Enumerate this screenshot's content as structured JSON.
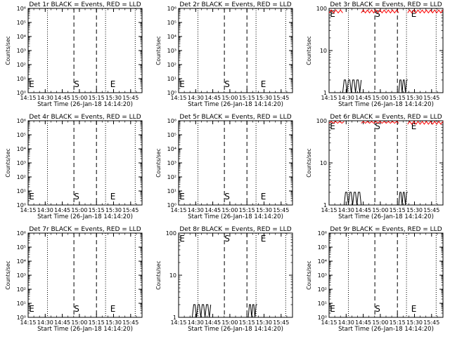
{
  "colors": {
    "events": "#000000",
    "lld": "#ff0000",
    "background": "#ffffff"
  },
  "common": {
    "xlabel": "Start Time (26-Jan-18 14:14:20)",
    "ylabel": "Counts/sec",
    "x_tick_labels": [
      "14:15",
      "14:30",
      "14:45",
      "15:00",
      "15:15",
      "15:30",
      "15:45"
    ],
    "start_marker": "S",
    "end_marker": "E"
  },
  "chart_data": [
    {
      "type": "line",
      "title": "Det 1r BLACK = Events, RED = LLD",
      "y_scale": "log",
      "ylim": [
        1,
        1000000
      ],
      "y_tick_labels": [
        "10⁰",
        "10¹",
        "10²",
        "10³",
        "10⁴",
        "10⁵",
        "10⁶"
      ],
      "x_range_min": [
        14.25,
        15.9167
      ],
      "dotted_lines_min": [
        14.533,
        15.383,
        15.817
      ],
      "dashed_lines_min": [
        14.92,
        15.25
      ],
      "events_segments": [],
      "lld_segments": []
    },
    {
      "type": "line",
      "title": "Det 2r BLACK = Events, RED = LLD",
      "y_scale": "log",
      "ylim": [
        1,
        1000000
      ],
      "y_tick_labels": [
        "10⁰",
        "10¹",
        "10²",
        "10³",
        "10⁴",
        "10⁵",
        "10⁶"
      ],
      "x_range_min": [
        14.25,
        15.9167
      ],
      "dotted_lines_min": [
        14.533,
        15.383,
        15.817
      ],
      "dashed_lines_min": [
        14.92,
        15.25
      ],
      "events_segments": [],
      "lld_segments": []
    },
    {
      "type": "line",
      "title": "Det 3r BLACK = Events, RED = LLD",
      "y_scale": "log",
      "ylim": [
        1,
        100
      ],
      "y_tick_labels": [
        "1",
        "10",
        "100"
      ],
      "x_range_min": [
        14.25,
        15.9167
      ],
      "dotted_lines_min": [
        14.533,
        15.383,
        15.817
      ],
      "dashed_lines_min": [
        14.92,
        15.25
      ],
      "events_segments": [
        [
          14.45,
          14.72,
          2
        ],
        [
          15.27,
          15.4,
          2
        ]
      ],
      "lld_segments": [
        [
          14.25,
          14.45,
          85
        ],
        [
          14.72,
          15.27,
          85
        ],
        [
          15.4,
          15.9167,
          85
        ]
      ]
    },
    {
      "type": "line",
      "title": "Det 4r BLACK = Events, RED = LLD",
      "y_scale": "log",
      "ylim": [
        1,
        1000000
      ],
      "y_tick_labels": [
        "10⁰",
        "10¹",
        "10²",
        "10³",
        "10⁴",
        "10⁵",
        "10⁶"
      ],
      "x_range_min": [
        14.25,
        15.9167
      ],
      "dotted_lines_min": [
        14.533,
        15.383,
        15.817
      ],
      "dashed_lines_min": [
        14.92,
        15.25
      ],
      "events_segments": [],
      "lld_segments": []
    },
    {
      "type": "line",
      "title": "Det 5r BLACK = Events, RED = LLD",
      "y_scale": "log",
      "ylim": [
        1,
        1000000
      ],
      "y_tick_labels": [
        "10⁰",
        "10¹",
        "10²",
        "10³",
        "10⁴",
        "10⁵",
        "10⁶"
      ],
      "x_range_min": [
        14.25,
        15.9167
      ],
      "dotted_lines_min": [
        14.533,
        15.383,
        15.817
      ],
      "dashed_lines_min": [
        14.92,
        15.25
      ],
      "events_segments": [],
      "lld_segments": []
    },
    {
      "type": "line",
      "title": "Det 6r BLACK = Events, RED = LLD",
      "y_scale": "log",
      "ylim": [
        1,
        100
      ],
      "y_tick_labels": [
        "1",
        "10",
        "100"
      ],
      "x_range_min": [
        14.25,
        15.9167
      ],
      "dotted_lines_min": [
        14.533,
        15.383,
        15.817
      ],
      "dashed_lines_min": [
        14.92,
        15.25
      ],
      "events_segments": [
        [
          14.47,
          14.72,
          2
        ],
        [
          15.27,
          15.4,
          2
        ]
      ],
      "lld_segments": [
        [
          14.25,
          14.47,
          95
        ],
        [
          14.72,
          15.27,
          95
        ],
        [
          15.4,
          15.9167,
          90
        ]
      ]
    },
    {
      "type": "line",
      "title": "Det 7r BLACK = Events, RED = LLD",
      "y_scale": "log",
      "ylim": [
        1,
        1000000
      ],
      "y_tick_labels": [
        "10⁰",
        "10¹",
        "10²",
        "10³",
        "10⁴",
        "10⁵",
        "10⁶"
      ],
      "x_range_min": [
        14.25,
        15.9167
      ],
      "dotted_lines_min": [
        14.533,
        15.383,
        15.817
      ],
      "dashed_lines_min": [
        14.92,
        15.25
      ],
      "events_segments": [],
      "lld_segments": []
    },
    {
      "type": "line",
      "title": "Det 8r BLACK = Events, RED = LLD",
      "y_scale": "log",
      "ylim": [
        1,
        100
      ],
      "y_tick_labels": [
        "1",
        "10",
        "100"
      ],
      "x_range_min": [
        14.25,
        15.9167
      ],
      "dotted_lines_min": [
        14.533,
        15.383,
        15.817
      ],
      "dashed_lines_min": [
        14.92,
        15.25
      ],
      "events_segments": [
        [
          14.45,
          14.72,
          2
        ],
        [
          15.27,
          15.4,
          2
        ]
      ],
      "lld_segments": []
    },
    {
      "type": "line",
      "title": "Det 9r BLACK = Events, RED = LLD",
      "y_scale": "log",
      "ylim": [
        1,
        1000000
      ],
      "y_tick_labels": [
        "10⁰",
        "10¹",
        "10²",
        "10³",
        "10⁴",
        "10⁵",
        "10⁶"
      ],
      "x_range_min": [
        14.25,
        15.9167
      ],
      "dotted_lines_min": [
        14.533,
        15.383,
        15.817
      ],
      "dashed_lines_min": [
        14.92,
        15.25
      ],
      "events_segments": [],
      "lld_segments": []
    }
  ]
}
